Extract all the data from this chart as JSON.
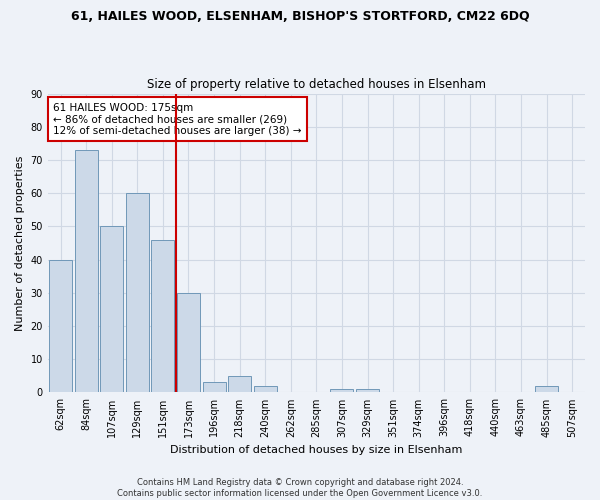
{
  "title": "61, HAILES WOOD, ELSENHAM, BISHOP'S STORTFORD, CM22 6DQ",
  "subtitle": "Size of property relative to detached houses in Elsenham",
  "xlabel": "Distribution of detached houses by size in Elsenham",
  "ylabel": "Number of detached properties",
  "bar_color": "#ccd9e8",
  "bar_edge_color": "#7098b8",
  "grid_color": "#d0d8e4",
  "background_color": "#eef2f8",
  "categories": [
    "62sqm",
    "84sqm",
    "107sqm",
    "129sqm",
    "151sqm",
    "173sqm",
    "196sqm",
    "218sqm",
    "240sqm",
    "262sqm",
    "285sqm",
    "307sqm",
    "329sqm",
    "351sqm",
    "374sqm",
    "396sqm",
    "418sqm",
    "440sqm",
    "463sqm",
    "485sqm",
    "507sqm"
  ],
  "values": [
    40,
    73,
    50,
    60,
    46,
    30,
    3,
    5,
    2,
    0,
    0,
    1,
    1,
    0,
    0,
    0,
    0,
    0,
    0,
    2,
    0
  ],
  "ylim": [
    0,
    90
  ],
  "yticks": [
    0,
    10,
    20,
    30,
    40,
    50,
    60,
    70,
    80,
    90
  ],
  "vline_index": 5,
  "vline_color": "#cc0000",
  "annotation_text": "61 HAILES WOOD: 175sqm\n← 86% of detached houses are smaller (269)\n12% of semi-detached houses are larger (38) →",
  "annotation_box_facecolor": "#ffffff",
  "annotation_box_edgecolor": "#cc0000",
  "footer_text": "Contains HM Land Registry data © Crown copyright and database right 2024.\nContains public sector information licensed under the Open Government Licence v3.0.",
  "figsize": [
    6.0,
    5.0
  ],
  "dpi": 100,
  "title_fontsize": 9,
  "subtitle_fontsize": 8.5,
  "ylabel_fontsize": 8,
  "xlabel_fontsize": 8,
  "tick_fontsize": 7,
  "annotation_fontsize": 7.5,
  "footer_fontsize": 6
}
